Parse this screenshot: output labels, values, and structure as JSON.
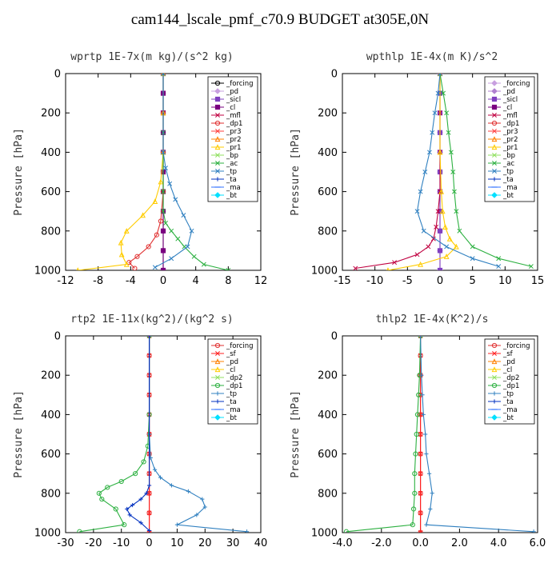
{
  "figure": {
    "title": "cam144_lscale_pmf_c70.9  BUDGET at305E,0N"
  },
  "chart_data": [
    {
      "type": "line",
      "title": "wprtp",
      "units": "1E-7x(m kg)/(s^2 kg)",
      "ylabel": "Pressure [hPa]",
      "xlim": [
        -12,
        12
      ],
      "ylim": [
        1000,
        0
      ],
      "y_reversed": true,
      "xticks": [
        -12,
        -8,
        -4,
        0,
        4,
        8,
        12
      ],
      "xtick_labels": [
        "-12",
        "-8",
        "-4",
        "0",
        "4",
        "8",
        "12"
      ],
      "yticks": [
        0,
        200,
        400,
        600,
        800,
        1000
      ],
      "legend_position": "top-right",
      "series": [
        {
          "name": "_forcing",
          "color": "#000000",
          "marker": "o",
          "x": [
            0,
            0,
            0,
            0,
            0,
            0,
            0,
            0,
            0,
            0,
            0
          ],
          "y": [
            0,
            100,
            200,
            300,
            400,
            500,
            600,
            700,
            800,
            900,
            1000
          ]
        },
        {
          "name": "_pd",
          "color": "#c8a0e0",
          "marker": "d",
          "x": [],
          "y": []
        },
        {
          "name": "_sicl",
          "color": "#8040c0",
          "marker": "s",
          "x": [],
          "y": []
        },
        {
          "name": "_cl",
          "color": "#7a0080",
          "marker": "s",
          "x": [
            0,
            0,
            0,
            0,
            0,
            0,
            0,
            0,
            0,
            0,
            0
          ],
          "y": [
            0,
            100,
            200,
            300,
            400,
            500,
            600,
            700,
            800,
            900,
            1000
          ]
        },
        {
          "name": "_mfl",
          "color": "#c00040",
          "marker": "x",
          "x": [],
          "y": []
        },
        {
          "name": "_dp1",
          "color": "#e03030",
          "marker": "o",
          "x": [
            0,
            0,
            0,
            0,
            -0.3,
            -0.8,
            -1.8,
            -3.2,
            -4.2,
            -3.5
          ],
          "y": [
            0,
            200,
            400,
            600,
            750,
            820,
            880,
            930,
            960,
            990
          ]
        },
        {
          "name": "_pr3",
          "color": "#ff4040",
          "marker": "x",
          "x": [],
          "y": []
        },
        {
          "name": "_pr2",
          "color": "#ff8000",
          "marker": "^",
          "x": [],
          "y": []
        },
        {
          "name": "_pr1",
          "color": "#ffcc00",
          "marker": "^",
          "x": [
            0,
            0,
            0,
            -0.3,
            -1,
            -2.5,
            -4.5,
            -5.2,
            -5.1,
            -4.5,
            -10.5
          ],
          "y": [
            0,
            200,
            400,
            550,
            650,
            720,
            800,
            860,
            920,
            970,
            1000
          ]
        },
        {
          "name": "_bp",
          "color": "#90e060",
          "marker": "x",
          "x": [],
          "y": []
        },
        {
          "name": "_ac",
          "color": "#2cb040",
          "marker": "x",
          "x": [
            0,
            0,
            0,
            0,
            0.3,
            1,
            1.8,
            2.6,
            3.8,
            5,
            8
          ],
          "y": [
            0,
            300,
            600,
            700,
            760,
            800,
            840,
            880,
            930,
            970,
            1000
          ]
        },
        {
          "name": "_tp",
          "color": "#3080c0",
          "marker": "x",
          "x": [
            0,
            0,
            0.3,
            0.8,
            1.5,
            2.5,
            3.5,
            3,
            1,
            -1
          ],
          "y": [
            0,
            400,
            480,
            560,
            640,
            720,
            800,
            880,
            940,
            985
          ]
        },
        {
          "name": "_ta",
          "color": "#0030c0",
          "marker": "+",
          "x": [],
          "y": []
        },
        {
          "name": "_ma",
          "color": "#3070ff",
          "marker": "-",
          "x": [],
          "y": []
        },
        {
          "name": "_bt",
          "color": "#00e0ff",
          "marker": "d",
          "x": [],
          "y": []
        }
      ]
    },
    {
      "type": "line",
      "title": "wpthlp",
      "units": "1E-4x(m K)/s^2",
      "ylabel": "Pressure [hPa]",
      "xlim": [
        -15,
        15
      ],
      "ylim": [
        1000,
        0
      ],
      "y_reversed": true,
      "xticks": [
        -15,
        -10,
        -5,
        0,
        5,
        10,
        15
      ],
      "xtick_labels": [
        "-15",
        "-10",
        "-5",
        "0",
        "5",
        "10",
        "15"
      ],
      "yticks": [
        0,
        200,
        400,
        600,
        800,
        1000
      ],
      "legend_position": "top-right",
      "series": [
        {
          "name": "_forcing",
          "color": "#c8a0e0",
          "marker": "d",
          "x": [
            0,
            0,
            0,
            0,
            0,
            0,
            0,
            0,
            0,
            0,
            0
          ],
          "y": [
            0,
            100,
            200,
            300,
            400,
            500,
            600,
            700,
            800,
            900,
            1000
          ]
        },
        {
          "name": "_pd",
          "color": "#b080d0",
          "marker": "d",
          "x": [],
          "y": []
        },
        {
          "name": "_sicl",
          "color": "#8040c0",
          "marker": "s",
          "x": [
            0,
            0,
            0,
            0,
            0,
            0,
            0,
            0,
            0,
            0,
            0
          ],
          "y": [
            0,
            100,
            200,
            300,
            400,
            500,
            600,
            700,
            800,
            900,
            1000
          ]
        },
        {
          "name": "_cl",
          "color": "#7a0080",
          "marker": "s",
          "x": [],
          "y": []
        },
        {
          "name": "_mfl",
          "color": "#c00040",
          "marker": "x",
          "x": [
            0,
            0,
            0,
            0,
            -0.3,
            -0.6,
            -1,
            -1.8,
            -3.5,
            -7,
            -13
          ],
          "y": [
            0,
            200,
            400,
            600,
            700,
            780,
            840,
            880,
            920,
            960,
            990
          ]
        },
        {
          "name": "_dp1",
          "color": "#e03030",
          "marker": "o",
          "x": [],
          "y": []
        },
        {
          "name": "_pr3",
          "color": "#ff4040",
          "marker": "x",
          "x": [],
          "y": []
        },
        {
          "name": "_pr2",
          "color": "#ff8000",
          "marker": "^",
          "x": [],
          "y": []
        },
        {
          "name": "_pr1",
          "color": "#ffcc00",
          "marker": "^",
          "x": [
            0,
            0,
            0.2,
            0.4,
            0.8,
            1.5,
            2.5,
            1,
            -3,
            -8
          ],
          "y": [
            0,
            400,
            600,
            700,
            780,
            840,
            880,
            930,
            970,
            1000
          ]
        },
        {
          "name": "_bp",
          "color": "#90e060",
          "marker": "x",
          "x": [],
          "y": []
        },
        {
          "name": "_ac",
          "color": "#2cb040",
          "marker": "x",
          "x": [
            0,
            0.5,
            1,
            1.3,
            1.7,
            2,
            2.2,
            2.5,
            3,
            5,
            9,
            14
          ],
          "y": [
            0,
            100,
            200,
            300,
            400,
            500,
            600,
            700,
            800,
            880,
            940,
            980
          ]
        },
        {
          "name": "_tp",
          "color": "#3080c0",
          "marker": "x",
          "x": [
            0,
            -0.3,
            -0.8,
            -1.2,
            -1.6,
            -2.3,
            -3,
            -3.5,
            -2.5,
            1,
            5,
            9
          ],
          "y": [
            0,
            100,
            200,
            300,
            400,
            500,
            600,
            700,
            800,
            880,
            940,
            980
          ]
        },
        {
          "name": "_ta",
          "color": "#0030c0",
          "marker": "+",
          "x": [],
          "y": []
        },
        {
          "name": "_ma",
          "color": "#3070ff",
          "marker": "-",
          "x": [],
          "y": []
        },
        {
          "name": "_bt",
          "color": "#00e0ff",
          "marker": "d",
          "x": [],
          "y": []
        }
      ]
    },
    {
      "type": "line",
      "title": "rtp2",
      "units": "1E-11x(kg^2)/(kg^2 s)",
      "ylabel": "Pressure [hPa]",
      "xlim": [
        -30,
        40
      ],
      "ylim": [
        1000,
        0
      ],
      "y_reversed": true,
      "xticks": [
        -30,
        -20,
        -10,
        0,
        10,
        20,
        30,
        40
      ],
      "xtick_labels": [
        "-30",
        "-20",
        "-10",
        "0",
        "10",
        "20",
        "30",
        "40"
      ],
      "yticks": [
        0,
        200,
        400,
        600,
        800,
        1000
      ],
      "legend_position": "top-right",
      "series": [
        {
          "name": "_forcing",
          "color": "#e03030",
          "marker": "o",
          "x": [
            0,
            0,
            0,
            0,
            0,
            0,
            0,
            0,
            0,
            0,
            0
          ],
          "y": [
            0,
            100,
            200,
            300,
            400,
            500,
            600,
            700,
            800,
            900,
            1000
          ]
        },
        {
          "name": "_sf",
          "color": "#ff2020",
          "marker": "x",
          "x": [
            0,
            0,
            0,
            0,
            0,
            0,
            0,
            0,
            0,
            0,
            0
          ],
          "y": [
            0,
            100,
            200,
            300,
            400,
            500,
            600,
            700,
            800,
            900,
            1000
          ]
        },
        {
          "name": "_pd",
          "color": "#ff8000",
          "marker": "^",
          "x": [],
          "y": []
        },
        {
          "name": "_cl",
          "color": "#ffcc00",
          "marker": "^",
          "x": [],
          "y": []
        },
        {
          "name": "_dp2",
          "color": "#90e060",
          "marker": "x",
          "x": [],
          "y": []
        },
        {
          "name": "_dp1",
          "color": "#2cb040",
          "marker": "o",
          "x": [
            0,
            0,
            -0.5,
            -2,
            -5,
            -10,
            -15,
            -18,
            -17,
            -12,
            -9,
            -25
          ],
          "y": [
            0,
            400,
            560,
            640,
            700,
            740,
            770,
            800,
            830,
            880,
            960,
            995
          ]
        },
        {
          "name": "_tp",
          "color": "#3080c0",
          "marker": "+",
          "x": [
            0,
            0,
            0.5,
            2,
            4,
            8,
            14,
            19,
            20,
            17,
            10,
            35
          ],
          "y": [
            0,
            500,
            620,
            680,
            720,
            760,
            790,
            830,
            870,
            910,
            960,
            995
          ]
        },
        {
          "name": "_ta",
          "color": "#0030c0",
          "marker": "+",
          "x": [
            0,
            0,
            -1,
            -3,
            -6,
            -8,
            -7,
            -3,
            0
          ],
          "y": [
            0,
            760,
            800,
            830,
            860,
            880,
            910,
            950,
            990
          ]
        },
        {
          "name": "_ma",
          "color": "#3070ff",
          "marker": "-",
          "x": [],
          "y": []
        },
        {
          "name": "_bt",
          "color": "#00e0ff",
          "marker": "d",
          "x": [],
          "y": []
        }
      ]
    },
    {
      "type": "line",
      "title": "thlp2",
      "units": "1E-4x(K^2)/s",
      "ylabel": "Pressure [hPa]",
      "xlim": [
        -4,
        6
      ],
      "ylim": [
        1000,
        0
      ],
      "y_reversed": true,
      "xticks": [
        -4,
        -2,
        0,
        2,
        4,
        6
      ],
      "xtick_labels": [
        "-4.0",
        "-2.0",
        "0.0",
        "2.0",
        "4.0",
        "6.0"
      ],
      "yticks": [
        0,
        200,
        400,
        600,
        800,
        1000
      ],
      "legend_position": "top-right",
      "series": [
        {
          "name": "_forcing",
          "color": "#e03030",
          "marker": "o",
          "x": [
            0,
            0,
            0,
            0,
            0,
            0,
            0,
            0,
            0,
            0,
            0
          ],
          "y": [
            0,
            100,
            200,
            300,
            400,
            500,
            600,
            700,
            800,
            900,
            1000
          ]
        },
        {
          "name": "_sf",
          "color": "#ff2020",
          "marker": "x",
          "x": [
            0,
            0,
            0,
            0,
            0,
            0,
            0,
            0,
            0,
            0,
            0
          ],
          "y": [
            0,
            100,
            200,
            300,
            400,
            500,
            600,
            700,
            800,
            900,
            1000
          ]
        },
        {
          "name": "_pd",
          "color": "#ff8000",
          "marker": "^",
          "x": [],
          "y": []
        },
        {
          "name": "_cl",
          "color": "#ffcc00",
          "marker": "^",
          "x": [],
          "y": []
        },
        {
          "name": "_dp2",
          "color": "#90e060",
          "marker": "x",
          "x": [],
          "y": []
        },
        {
          "name": "_dp1",
          "color": "#2cb040",
          "marker": "o",
          "x": [
            0,
            -0.05,
            -0.1,
            -0.15,
            -0.2,
            -0.25,
            -0.3,
            -0.3,
            -0.35,
            -0.4,
            -3.8
          ],
          "y": [
            0,
            200,
            300,
            400,
            500,
            600,
            700,
            800,
            880,
            960,
            995
          ]
        },
        {
          "name": "_tp",
          "color": "#3080c0",
          "marker": "+",
          "x": [
            0,
            0.05,
            0.1,
            0.15,
            0.25,
            0.3,
            0.45,
            0.6,
            0.5,
            0.3,
            5.8
          ],
          "y": [
            0,
            200,
            300,
            400,
            500,
            600,
            700,
            800,
            880,
            960,
            995
          ]
        },
        {
          "name": "_ta",
          "color": "#0030c0",
          "marker": "+",
          "x": [],
          "y": []
        },
        {
          "name": "_ma",
          "color": "#3070ff",
          "marker": "-",
          "x": [],
          "y": []
        },
        {
          "name": "_bt",
          "color": "#00e0ff",
          "marker": "d",
          "x": [],
          "y": []
        }
      ]
    }
  ]
}
